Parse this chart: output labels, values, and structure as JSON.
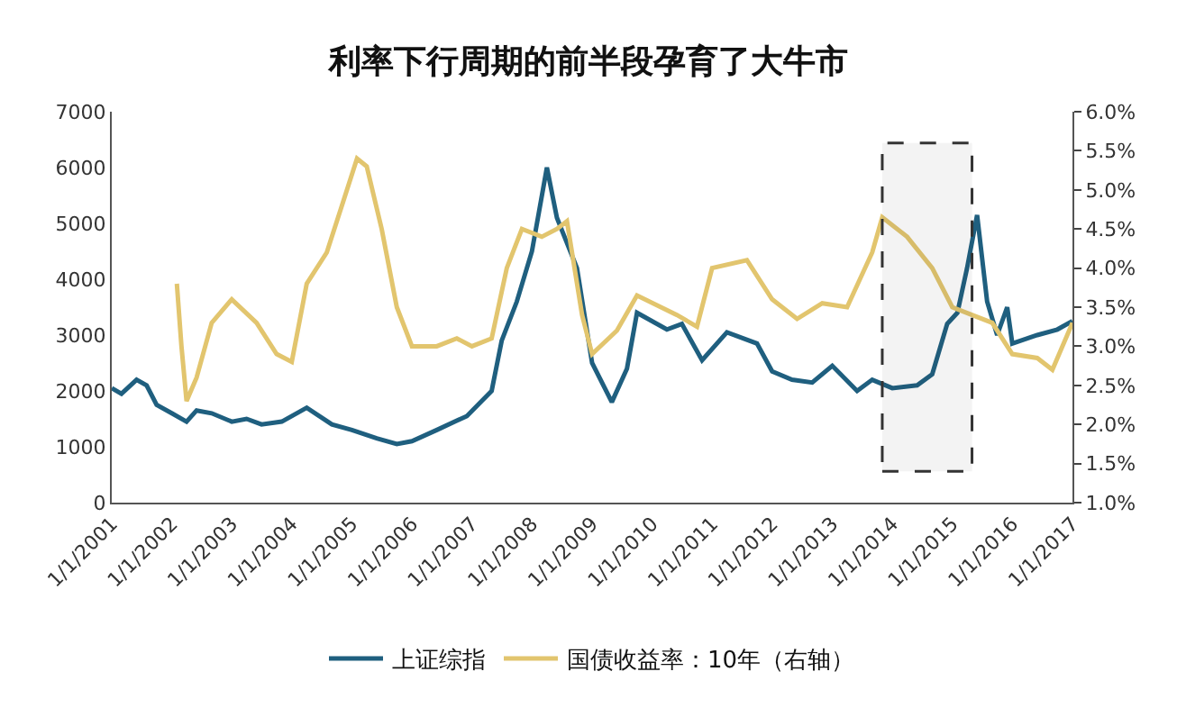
{
  "chart_data": {
    "type": "line",
    "title": "利率下行周期的前半段孕育了大牛市",
    "xlim": [
      "2001-01-01",
      "2017-01-01"
    ],
    "xticks": [
      {
        "value": "2001-01-01",
        "label": "1/1/2001"
      },
      {
        "value": "2002-01-01",
        "label": "1/1/2002"
      },
      {
        "value": "2003-01-01",
        "label": "1/1/2003"
      },
      {
        "value": "2004-01-01",
        "label": "1/1/2004"
      },
      {
        "value": "2005-01-01",
        "label": "1/1/2005"
      },
      {
        "value": "2006-01-01",
        "label": "1/1/2006"
      },
      {
        "value": "2007-01-01",
        "label": "1/1/2007"
      },
      {
        "value": "2008-01-01",
        "label": "1/1/2008"
      },
      {
        "value": "2009-01-01",
        "label": "1/1/2009"
      },
      {
        "value": "2010-01-01",
        "label": "1/1/2010"
      },
      {
        "value": "2011-01-01",
        "label": "1/1/2011"
      },
      {
        "value": "2012-01-01",
        "label": "1/1/2012"
      },
      {
        "value": "2013-01-01",
        "label": "1/1/2013"
      },
      {
        "value": "2014-01-01",
        "label": "1/1/2014"
      },
      {
        "value": "2015-01-01",
        "label": "1/1/2015"
      },
      {
        "value": "2016-01-01",
        "label": "1/1/2016"
      },
      {
        "value": "2017-01-01",
        "label": "1/1/2017"
      }
    ],
    "ylim": [
      0,
      7000
    ],
    "yticks": [
      0,
      1000,
      2000,
      3000,
      4000,
      5000,
      6000,
      7000
    ],
    "y2lim": [
      1.0,
      6.0
    ],
    "y2ticks": [
      {
        "value": 1.0,
        "label": "1.0%"
      },
      {
        "value": 1.5,
        "label": "1.5%"
      },
      {
        "value": 2.0,
        "label": "2.0%"
      },
      {
        "value": 2.5,
        "label": "2.5%"
      },
      {
        "value": 3.0,
        "label": "3.0%"
      },
      {
        "value": 3.5,
        "label": "3.5%"
      },
      {
        "value": 4.0,
        "label": "4.0%"
      },
      {
        "value": 4.5,
        "label": "4.5%"
      },
      {
        "value": 5.0,
        "label": "5.0%"
      },
      {
        "value": 5.5,
        "label": "5.5%"
      },
      {
        "value": 6.0,
        "label": "6.0%"
      }
    ],
    "legend": "bottom",
    "marker": "none",
    "line_style": "solid",
    "bands": [
      {
        "axis": "x",
        "from": "2013-11",
        "to": "2015-05",
        "color": "#333333"
      }
    ],
    "series": [
      {
        "name": "上证综指",
        "color": "#1f5f7f",
        "x": [
          "2001-01",
          "2001-03",
          "2001-06",
          "2001-08",
          "2001-10",
          "2002-01",
          "2002-04",
          "2002-06",
          "2002-09",
          "2003-01",
          "2003-04",
          "2003-07",
          "2003-11",
          "2004-04",
          "2004-09",
          "2005-01",
          "2005-06",
          "2005-10",
          "2006-01",
          "2006-06",
          "2006-12",
          "2007-05",
          "2007-07",
          "2007-10",
          "2008-01",
          "2008-04",
          "2008-06",
          "2008-10",
          "2009-01",
          "2009-05",
          "2009-08",
          "2009-10",
          "2010-04",
          "2010-07",
          "2010-11",
          "2011-04",
          "2011-10",
          "2012-01",
          "2012-05",
          "2012-09",
          "2013-01",
          "2013-06",
          "2013-09",
          "2014-01",
          "2014-06",
          "2014-09",
          "2014-12",
          "2015-02",
          "2015-04",
          "2015-06",
          "2015-08",
          "2015-10",
          "2015-12",
          "2016-01",
          "2016-06",
          "2016-10",
          "2017-01"
        ],
        "values": [
          2050,
          1950,
          2200,
          2100,
          1750,
          1600,
          1450,
          1650,
          1600,
          1450,
          1500,
          1400,
          1450,
          1700,
          1400,
          1300,
          1150,
          1050,
          1100,
          1300,
          1550,
          2000,
          2900,
          3600,
          4500,
          6000,
          5100,
          4200,
          2500,
          1800,
          2400,
          3400,
          3100,
          3200,
          2550,
          3050,
          2850,
          2350,
          2200,
          2150,
          2450,
          2000,
          2200,
          2050,
          2100,
          2300,
          3200,
          3400,
          4200,
          5150,
          3600,
          3000,
          3500,
          2850,
          3000,
          3100,
          3250
        ]
      },
      {
        "name": "国债收益率：10年（右轴）",
        "color": "#e2c56e",
        "axis": "y2",
        "x": [
          "2002-02",
          "2002-03",
          "2002-04",
          "2002-06",
          "2002-09",
          "2003-01",
          "2003-06",
          "2003-10",
          "2004-01",
          "2004-04",
          "2004-08",
          "2004-11",
          "2005-02",
          "2005-04",
          "2005-07",
          "2005-10",
          "2006-01",
          "2006-06",
          "2006-10",
          "2007-01",
          "2007-05",
          "2007-08",
          "2007-11",
          "2008-03",
          "2008-06",
          "2008-08",
          "2008-11",
          "2009-01",
          "2009-06",
          "2009-10",
          "2010-06",
          "2010-10",
          "2011-01",
          "2011-08",
          "2012-01",
          "2012-06",
          "2012-11",
          "2013-04",
          "2013-09",
          "2013-11",
          "2014-04",
          "2014-09",
          "2015-01",
          "2015-05",
          "2015-09",
          "2016-01",
          "2016-06",
          "2016-09",
          "2017-01"
        ],
        "values": [
          3.8,
          3.0,
          2.3,
          2.6,
          3.3,
          3.6,
          3.3,
          2.9,
          2.8,
          3.8,
          4.2,
          4.8,
          5.4,
          5.3,
          4.5,
          3.5,
          3.0,
          3.0,
          3.1,
          3.0,
          3.1,
          4.0,
          4.5,
          4.4,
          4.5,
          4.6,
          3.4,
          2.9,
          3.2,
          3.65,
          3.4,
          3.25,
          4.0,
          4.1,
          3.6,
          3.35,
          3.55,
          3.5,
          4.2,
          4.65,
          4.4,
          4.0,
          3.5,
          3.4,
          3.3,
          2.9,
          2.85,
          2.7,
          3.3
        ]
      }
    ]
  }
}
